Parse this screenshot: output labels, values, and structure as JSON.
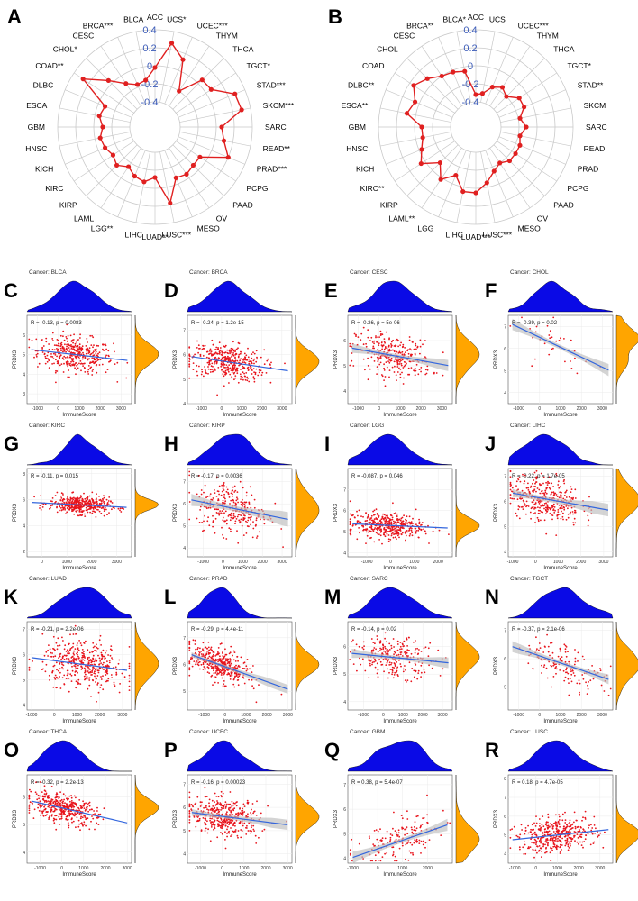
{
  "chart_data": [
    {
      "type": "radar",
      "panel": "A",
      "ylim": [
        -0.4,
        0.4
      ],
      "ticks": [
        "-0.4",
        "-0.2",
        "0",
        "0.2",
        "0.4"
      ],
      "categories": [
        "ACC",
        "UCS*",
        "UCEC***",
        "THYM",
        "THCA",
        "TGCT*",
        "STAD***",
        "SKCM***",
        "SARC",
        "READ**",
        "PRAD***",
        "PCPG",
        "PAAD",
        "OV",
        "MESO",
        "LUSC***",
        "LUAD**",
        "LIHC",
        "LGG**",
        "LAML",
        "KIRP",
        "KIRC",
        "KICH",
        "HNSC",
        "GBM",
        "ESCA",
        "DLBC",
        "COAD**",
        "CHOL*",
        "CESC",
        "BRCA***",
        "BLCA"
      ],
      "values": [
        -0.02,
        0.27,
        0.13,
        -0.2,
        0.06,
        0.07,
        0.28,
        0.3,
        0.06,
        0.1,
        0.2,
        -0.08,
        -0.08,
        -0.05,
        -0.07,
        0.18,
        -0.12,
        -0.06,
        -0.09,
        -0.15,
        -0.08,
        -0.12,
        -0.08,
        -0.06,
        -0.1,
        -0.05,
        -0.08,
        0.28,
        0.05,
        -0.1,
        -0.17,
        -0.15
      ]
    },
    {
      "type": "radar",
      "panel": "B",
      "ylim": [
        -0.4,
        0.4
      ],
      "ticks": [
        "-0.4",
        "-0.2",
        "0",
        "0.2",
        "0.4"
      ],
      "categories": [
        "ACC",
        "UCS",
        "UCEC***",
        "THYM",
        "THCA",
        "TGCT*",
        "STAD**",
        "SKCM",
        "SARC",
        "READ",
        "PRAD",
        "PCPG",
        "PAAD",
        "OV",
        "MESO",
        "LUSC***",
        "LUAD***",
        "LIHC",
        "LGG",
        "LAML**",
        "KIRP",
        "KIRC**",
        "KICH",
        "HNSC",
        "GBM",
        "ESCA**",
        "DLBC**",
        "COAD",
        "CHOL",
        "CESC",
        "BRCA**",
        "BLCA*"
      ],
      "values": [
        -0.32,
        -0.3,
        -0.2,
        -0.15,
        -0.2,
        -0.1,
        -0.1,
        -0.18,
        -0.12,
        -0.18,
        -0.15,
        -0.15,
        -0.15,
        -0.2,
        -0.15,
        -0.05,
        0.05,
        0.05,
        -0.1,
        0.02,
        -0.12,
        0.05,
        -0.03,
        -0.08,
        -0.08,
        0.1,
        0.05,
        0.15,
        0.08,
        0.0,
        -0.02,
        -0.05
      ]
    },
    {
      "type": "scatter",
      "panel": "C",
      "cancer": "Cancer: BLCA",
      "stat": "R = -0.13, p = 0.0083",
      "xlabel": "ImmuneScore",
      "ylabel": "PRDX3",
      "xlim": [
        -1500,
        3500
      ],
      "ylim": [
        2.5,
        7
      ],
      "xticks": [
        -1000,
        0,
        1000,
        2000,
        3000
      ],
      "yticks": [
        3,
        4,
        5,
        6
      ],
      "slope": -0.00012,
      "intercept": 5.0,
      "spread": 0.45,
      "n": 400,
      "xmean": 800,
      "xsd": 900,
      "ci": false
    },
    {
      "type": "scatter",
      "panel": "D",
      "cancer": "Cancer: BRCA",
      "stat": "R = -0.24, p = 1.2e-15",
      "xlabel": "ImmuneScore",
      "ylabel": "PRDX3",
      "xlim": [
        -1700,
        3500
      ],
      "ylim": [
        4,
        7.6
      ],
      "xticks": [
        -1000,
        0,
        1000,
        2000,
        3000
      ],
      "yticks": [
        4,
        5,
        6,
        7
      ],
      "slope": -0.00012,
      "intercept": 5.7,
      "spread": 0.35,
      "n": 1000,
      "xmean": 300,
      "xsd": 900,
      "ci": false
    },
    {
      "type": "scatter",
      "panel": "E",
      "cancer": "Cancer: CESC",
      "stat": "R = -0.26, p = 5e-06",
      "xlabel": "ImmuneScore",
      "ylabel": "PRDX3",
      "xlim": [
        -1500,
        3500
      ],
      "ylim": [
        3.5,
        7
      ],
      "xticks": [
        -1000,
        0,
        1000,
        2000,
        3000
      ],
      "yticks": [
        4,
        5,
        6
      ],
      "slope": -0.00015,
      "intercept": 5.4,
      "spread": 0.4,
      "n": 300,
      "xmean": 700,
      "xsd": 900,
      "ci": true
    },
    {
      "type": "scatter",
      "panel": "F",
      "cancer": "Cancer: CHOL",
      "stat": "R = -0.39, p = 0.02",
      "xlabel": "ImmuneScore",
      "ylabel": "PRDX3",
      "xlim": [
        -1500,
        3500
      ],
      "ylim": [
        3.5,
        7.5
      ],
      "xticks": [
        -1000,
        0,
        1000,
        2000,
        3000
      ],
      "yticks": [
        4,
        5,
        6,
        7
      ],
      "slope": -0.00045,
      "intercept": 6.1,
      "spread": 0.5,
      "n": 36,
      "xmean": 900,
      "xsd": 1000,
      "ci": true
    },
    {
      "type": "scatter",
      "panel": "G",
      "cancer": "Cancer: KIRC",
      "stat": "R = -0.11, p = 0.015",
      "xlabel": "ImmuneScore",
      "ylabel": "PRDX3",
      "xlim": [
        -600,
        3600
      ],
      "ylim": [
        1.6,
        8.4
      ],
      "xticks": [
        0,
        1000,
        2000,
        3000
      ],
      "yticks": [
        2,
        4,
        6,
        8
      ],
      "slope": -0.0001,
      "intercept": 5.6,
      "spread": 0.35,
      "n": 530,
      "xmean": 1500,
      "xsd": 600,
      "ci": false
    },
    {
      "type": "scatter",
      "panel": "H",
      "cancer": "Cancer: KIRP",
      "stat": "R = -0.17, p = 0.0036",
      "xlabel": "ImmuneScore",
      "ylabel": "PRDX3",
      "xlim": [
        -1800,
        3500
      ],
      "ylim": [
        3.6,
        7.6
      ],
      "xticks": [
        -1000,
        0,
        1000,
        2000,
        3000
      ],
      "yticks": [
        4,
        5,
        6,
        7
      ],
      "slope": -0.00018,
      "intercept": 5.8,
      "spread": 0.6,
      "n": 290,
      "xmean": 500,
      "xsd": 900,
      "ci": true
    },
    {
      "type": "scatter",
      "panel": "I",
      "cancer": "Cancer: LGG",
      "stat": "R = -0.087, p = 0.046",
      "xlabel": "ImmuneScore",
      "ylabel": "PRDX3",
      "xlim": [
        -1800,
        2600
      ],
      "ylim": [
        3.8,
        8
      ],
      "xticks": [
        -1000,
        0,
        1000,
        2000
      ],
      "yticks": [
        4,
        5,
        6,
        7
      ],
      "slope": -5e-05,
      "intercept": 5.3,
      "spread": 0.3,
      "n": 520,
      "xmean": -200,
      "xsd": 800,
      "ci": false
    },
    {
      "type": "scatter",
      "panel": "J",
      "cancer": "Cancer: LIHC",
      "stat": "R = -0.22, p = 1.7e-05",
      "xlabel": "ImmuneScore",
      "ylabel": "PRDX3",
      "xlim": [
        -1200,
        3400
      ],
      "ylim": [
        3.8,
        7.3
      ],
      "xticks": [
        -1000,
        0,
        1000,
        2000,
        3000
      ],
      "yticks": [
        4,
        5,
        6,
        7
      ],
      "slope": -0.00016,
      "intercept": 6.1,
      "spread": 0.45,
      "n": 370,
      "xmean": 400,
      "xsd": 800,
      "ci": true
    },
    {
      "type": "scatter",
      "panel": "K",
      "cancer": "Cancer: LUAD",
      "stat": "R = -0.21, p = 2.2e-06",
      "xlabel": "ImmuneScore",
      "ylabel": "PRDX3",
      "xlim": [
        -1200,
        3400
      ],
      "ylim": [
        3.8,
        7.3
      ],
      "xticks": [
        -1000,
        0,
        1000,
        2000,
        3000
      ],
      "yticks": [
        4,
        5,
        6,
        7
      ],
      "slope": -0.00012,
      "intercept": 5.6,
      "spread": 0.45,
      "n": 510,
      "xmean": 1300,
      "xsd": 900,
      "ci": false
    },
    {
      "type": "scatter",
      "panel": "L",
      "cancer": "Cancer: PRAD",
      "stat": "R = -0.29, p = 4.4e-11",
      "xlabel": "ImmuneScore",
      "ylabel": "PRDX3",
      "xlim": [
        -1800,
        3200
      ],
      "ylim": [
        4.3,
        7.6
      ],
      "xticks": [
        -1000,
        0,
        1000,
        2000,
        3000
      ],
      "yticks": [
        5,
        6,
        7
      ],
      "slope": -0.00028,
      "intercept": 6.0,
      "spread": 0.3,
      "n": 490,
      "xmean": -300,
      "xsd": 700,
      "ci": true
    },
    {
      "type": "scatter",
      "panel": "M",
      "cancer": "Cancer: SARC",
      "stat": "R = -0.14, p = 0.02",
      "xlabel": "ImmuneScore",
      "ylabel": "PRDX3",
      "xlim": [
        -1800,
        3500
      ],
      "ylim": [
        3.7,
        6.9
      ],
      "xticks": [
        -1000,
        0,
        1000,
        2000,
        3000
      ],
      "yticks": [
        4,
        5,
        6
      ],
      "slope": -7e-05,
      "intercept": 5.6,
      "spread": 0.35,
      "n": 260,
      "xmean": 600,
      "xsd": 1000,
      "ci": true
    },
    {
      "type": "scatter",
      "panel": "N",
      "cancer": "Cancer: TGCT",
      "stat": "R = -0.37, p = 2.1e-06",
      "xlabel": "ImmuneScore",
      "ylabel": "PRDX3",
      "xlim": [
        -1500,
        3500
      ],
      "ylim": [
        4.2,
        7.3
      ],
      "xticks": [
        -1000,
        0,
        1000,
        2000,
        3000
      ],
      "yticks": [
        5,
        6,
        7
      ],
      "slope": -0.00025,
      "intercept": 5.8,
      "spread": 0.35,
      "n": 150,
      "xmean": 1200,
      "xsd": 1000,
      "ci": true
    },
    {
      "type": "scatter",
      "panel": "O",
      "cancer": "Cancer: THCA",
      "stat": "R = -0.32, p = 2.2e-13",
      "xlabel": "ImmuneScore",
      "ylabel": "PRDX3",
      "xlim": [
        -1600,
        3200
      ],
      "ylim": [
        3.6,
        6.8
      ],
      "xticks": [
        -1000,
        0,
        1000,
        2000,
        3000
      ],
      "yticks": [
        4,
        5,
        6
      ],
      "slope": -0.00018,
      "intercept": 5.6,
      "spread": 0.25,
      "n": 510,
      "xmean": 0,
      "xsd": 800,
      "ci": false
    },
    {
      "type": "scatter",
      "panel": "P",
      "cancer": "Cancer: UCEC",
      "stat": "R = -0.16, p = 0.00023",
      "xlabel": "ImmuneScore",
      "ylabel": "PRDX3",
      "xlim": [
        -1600,
        3200
      ],
      "ylim": [
        3.6,
        7.4
      ],
      "xticks": [
        -1000,
        0,
        1000,
        2000,
        3000
      ],
      "yticks": [
        4,
        5,
        6,
        7
      ],
      "slope": -0.00012,
      "intercept": 5.6,
      "spread": 0.4,
      "n": 540,
      "xmean": 100,
      "xsd": 800,
      "ci": true
    },
    {
      "type": "scatter",
      "panel": "Q",
      "cancer": "Cancer: GBM",
      "stat": "R = 0.38, p = 5.4e-07",
      "xlabel": "ImmuneScore",
      "ylabel": "PRDX3",
      "xlim": [
        -1200,
        3000
      ],
      "ylim": [
        3.8,
        7.4
      ],
      "xticks": [
        -1000,
        0,
        1000,
        2000
      ],
      "yticks": [
        4,
        5,
        6,
        7
      ],
      "slope": 0.00035,
      "intercept": 4.7,
      "spread": 0.45,
      "n": 160,
      "xmean": 900,
      "xsd": 900,
      "ci": true
    },
    {
      "type": "scatter",
      "panel": "R",
      "cancer": "Cancer: LUSC",
      "stat": "R = 0.18, p = 4.7e-05",
      "xlabel": "ImmuneScore",
      "ylabel": "PRDX3",
      "xlim": [
        -1300,
        3600
      ],
      "ylim": [
        3.5,
        8.2
      ],
      "xticks": [
        -1000,
        0,
        1000,
        2000,
        3000
      ],
      "yticks": [
        4,
        5,
        6,
        7,
        8
      ],
      "slope": 0.00012,
      "intercept": 5.0,
      "spread": 0.45,
      "n": 500,
      "xmean": 1000,
      "xsd": 900,
      "ci": false
    }
  ],
  "colors": {
    "radar_line": "#e02020",
    "radar_grid": "#c9c9c9",
    "radar_tick": "#3b5bb8",
    "density_top": "#0a0ae6",
    "density_right": "#ffa500",
    "points": "#e8141c",
    "fit_line": "#3366dd",
    "ci_band": "#bdbdbd",
    "panel_bg": "#ffffff",
    "grid": "#ebebeb"
  }
}
